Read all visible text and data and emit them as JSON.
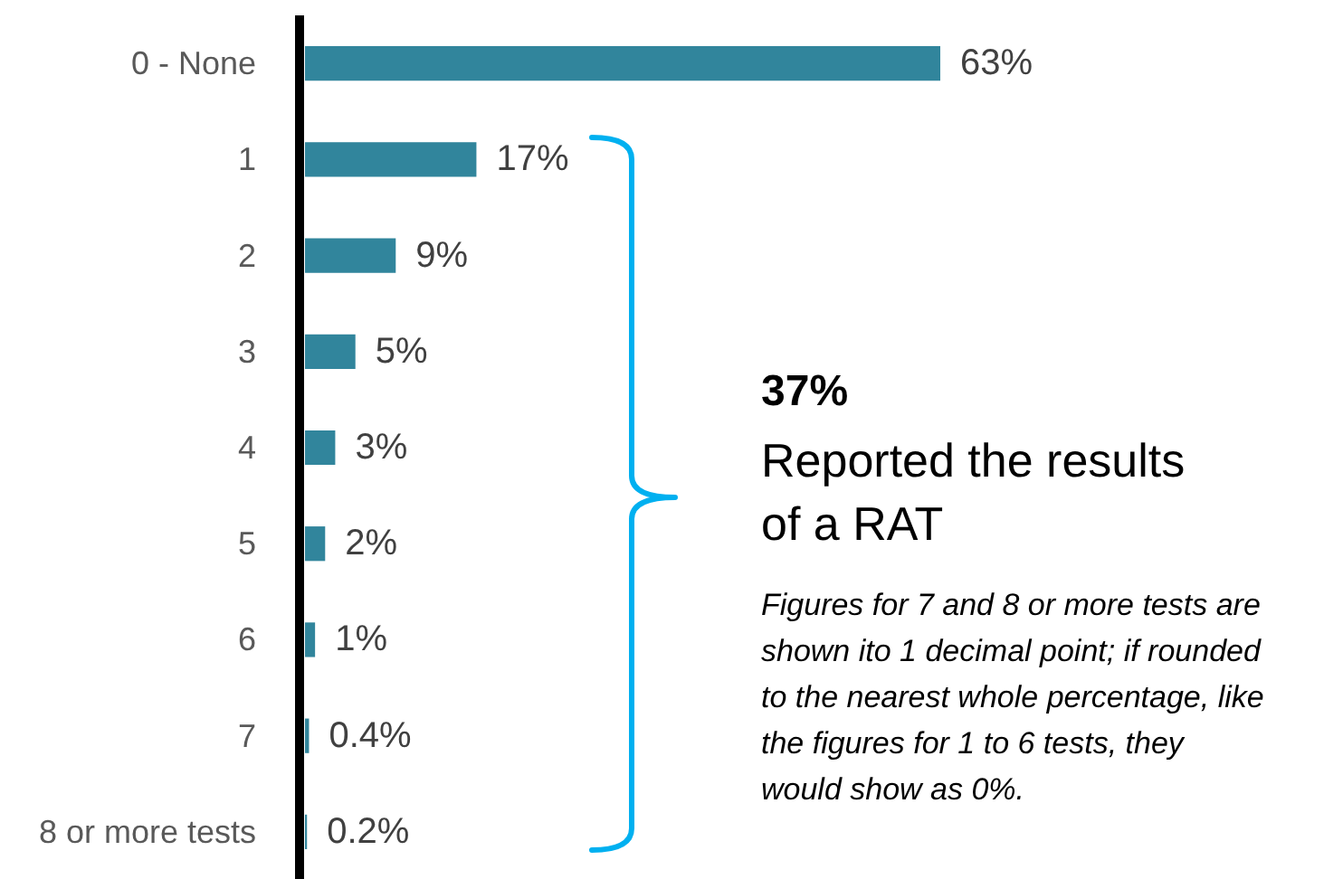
{
  "chart_data": {
    "type": "bar",
    "orientation": "horizontal",
    "categories": [
      "0 - None",
      "1",
      "2",
      "3",
      "4",
      "5",
      "6",
      "7",
      "8 or more tests"
    ],
    "values": [
      63,
      17,
      9,
      5,
      3,
      2,
      1,
      0.4,
      0.2
    ],
    "value_labels": [
      "63%",
      "17%",
      "9%",
      "5%",
      "3%",
      "2%",
      "1%",
      "0.4%",
      "0.2%"
    ],
    "color": "#31859c",
    "annotations": [
      "37%",
      "Reported the results of a RAT",
      "Figures for 7 and 8 or more tests are shown ito 1 decimal point; if rounded to the nearest whole percentage, like the figures for 1 to 6 tests, they would show as 0%."
    ]
  }
}
